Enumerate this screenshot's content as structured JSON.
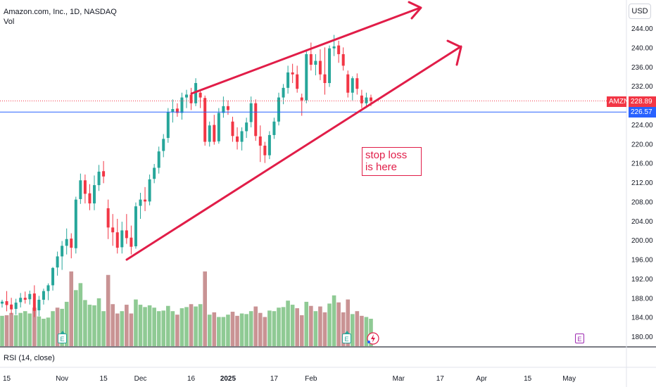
{
  "header": {
    "symbol_line": "Amazon.com, Inc., 1D, NASDAQ",
    "volume_label": "Vol"
  },
  "currency": "USD",
  "rsi_label": "RSI (14, close)",
  "annotation_note": [
    "stop loss",
    "is here"
  ],
  "price_tags": {
    "symbol": "AMZN",
    "last_price": "228.89",
    "line_price": "226.57"
  },
  "colors": {
    "up": "#26a69a",
    "down": "#f23645",
    "volume_up": "#8fca94",
    "volume_down": "#c99394",
    "annotation": "#e11d48",
    "hline": "#2962ff"
  },
  "icons": {
    "earnings_past": "E",
    "earnings_future": "E",
    "flash": "lightning-icon"
  },
  "chart_data": {
    "type": "candlestick",
    "title": "Amazon.com, Inc., 1D, NASDAQ",
    "ylim": [
      178,
      246
    ],
    "y_ticks": [
      180,
      184,
      188,
      192,
      196,
      200,
      204,
      208,
      212,
      216,
      220,
      224,
      228,
      232,
      236,
      240,
      244
    ],
    "y_tick_labels": [
      "180.00",
      "184.00",
      "188.00",
      "192.00",
      "196.00",
      "200.00",
      "204.00",
      "208.00",
      "212.00",
      "216.00",
      "220.00",
      "224.00",
      "228.00",
      "232.00",
      "236.00",
      "240.00",
      "244.00"
    ],
    "x_axis_ticks": [
      "15",
      "Nov",
      "15",
      "Dec",
      "16",
      "2025",
      "17",
      "Feb",
      "Mar",
      "17",
      "Apr",
      "15",
      "May"
    ],
    "x_axis_tick_bar_index": [
      1,
      13,
      22,
      30,
      41,
      49,
      59,
      67,
      86,
      95,
      104,
      114,
      123
    ],
    "last_price": 228.89,
    "horizontal_line": 226.57,
    "grid": false,
    "candles": [
      [
        186.8,
        187.6,
        186.0,
        187.2
      ],
      [
        187.3,
        189.4,
        185.2,
        186.5
      ],
      [
        186.6,
        188.0,
        184.6,
        185.6
      ],
      [
        185.7,
        187.8,
        184.5,
        187.0
      ],
      [
        187.1,
        189.0,
        186.0,
        188.0
      ],
      [
        188.0,
        189.3,
        186.8,
        187.6
      ],
      [
        187.7,
        189.5,
        186.6,
        188.8
      ],
      [
        188.9,
        190.6,
        184.0,
        185.3
      ],
      [
        185.4,
        188.4,
        184.2,
        187.6
      ],
      [
        187.6,
        189.9,
        186.6,
        189.4
      ],
      [
        189.4,
        191.0,
        187.5,
        190.6
      ],
      [
        190.6,
        194.4,
        189.5,
        194.2
      ],
      [
        194.3,
        197.6,
        192.6,
        196.6
      ],
      [
        196.6,
        199.8,
        193.8,
        198.8
      ],
      [
        198.8,
        202.4,
        197.0,
        200.2
      ],
      [
        200.3,
        201.4,
        196.2,
        198.4
      ],
      [
        198.3,
        209.0,
        197.2,
        208.4
      ],
      [
        208.5,
        213.8,
        207.5,
        212.4
      ],
      [
        212.4,
        213.6,
        207.6,
        209.6
      ],
      [
        209.7,
        211.6,
        206.2,
        207.6
      ],
      [
        207.6,
        213.4,
        206.2,
        211.4
      ],
      [
        211.4,
        215.6,
        210.2,
        214.2
      ],
      [
        214.3,
        216.4,
        211.8,
        213.2
      ],
      [
        206.6,
        208.4,
        200.2,
        202.6
      ],
      [
        202.6,
        205.4,
        198.8,
        201.6
      ],
      [
        201.6,
        204.4,
        197.2,
        198.4
      ],
      [
        198.5,
        203.8,
        197.2,
        202.0
      ],
      [
        202.0,
        205.4,
        199.2,
        200.4
      ],
      [
        200.5,
        203.0,
        197.0,
        198.6
      ],
      [
        198.7,
        207.8,
        198.2,
        207.0
      ],
      [
        207.1,
        209.8,
        204.4,
        208.4
      ],
      [
        208.4,
        211.0,
        206.0,
        208.0
      ],
      [
        208.0,
        213.6,
        207.2,
        212.6
      ],
      [
        212.7,
        215.8,
        211.8,
        215.0
      ],
      [
        215.0,
        219.4,
        213.8,
        218.4
      ],
      [
        218.5,
        222.0,
        217.2,
        221.0
      ],
      [
        221.2,
        227.4,
        220.2,
        226.6
      ],
      [
        226.6,
        229.2,
        224.4,
        227.2
      ],
      [
        227.3,
        228.4,
        225.6,
        226.4
      ],
      [
        226.4,
        230.6,
        225.0,
        229.6
      ],
      [
        229.6,
        231.2,
        227.4,
        230.2
      ],
      [
        230.2,
        231.6,
        227.0,
        228.4
      ],
      [
        228.4,
        233.6,
        227.8,
        232.6
      ],
      [
        230.6,
        231.0,
        227.4,
        229.6
      ],
      [
        229.5,
        230.0,
        219.6,
        220.4
      ],
      [
        220.4,
        224.6,
        219.4,
        223.8
      ],
      [
        223.9,
        226.0,
        219.8,
        220.4
      ],
      [
        220.5,
        227.4,
        220.0,
        226.4
      ],
      [
        226.4,
        229.8,
        225.4,
        227.8
      ],
      [
        227.8,
        229.0,
        226.0,
        227.0
      ],
      [
        224.6,
        225.6,
        220.4,
        221.6
      ],
      [
        221.5,
        223.4,
        218.8,
        220.4
      ],
      [
        220.4,
        223.4,
        218.6,
        222.6
      ],
      [
        222.6,
        225.4,
        221.2,
        224.4
      ],
      [
        224.5,
        229.8,
        223.4,
        228.4
      ],
      [
        228.4,
        229.2,
        220.6,
        221.6
      ],
      [
        221.5,
        223.8,
        216.2,
        219.6
      ],
      [
        219.6,
        220.4,
        216.0,
        217.6
      ],
      [
        217.6,
        222.6,
        216.8,
        221.8
      ],
      [
        221.8,
        225.4,
        221.0,
        224.6
      ],
      [
        224.6,
        230.6,
        223.8,
        229.6
      ],
      [
        229.6,
        232.4,
        228.2,
        231.6
      ],
      [
        231.6,
        236.2,
        230.4,
        234.8
      ],
      [
        234.8,
        236.6,
        232.6,
        234.4
      ],
      [
        234.4,
        236.2,
        230.6,
        231.4
      ],
      [
        229.6,
        230.4,
        225.8,
        229.0
      ],
      [
        229.0,
        239.6,
        228.4,
        238.6
      ],
      [
        238.6,
        241.0,
        235.2,
        236.4
      ],
      [
        236.4,
        238.6,
        234.2,
        237.2
      ],
      [
        237.2,
        239.6,
        233.2,
        234.4
      ],
      [
        234.4,
        240.0,
        230.2,
        232.6
      ],
      [
        232.6,
        240.4,
        231.8,
        239.8
      ],
      [
        239.8,
        242.6,
        238.2,
        240.2
      ],
      [
        240.4,
        241.4,
        236.8,
        238.6
      ],
      [
        238.6,
        240.0,
        235.2,
        236.2
      ],
      [
        234.4,
        235.2,
        229.6,
        230.6
      ],
      [
        230.6,
        234.0,
        229.0,
        233.6
      ],
      [
        233.6,
        234.6,
        230.2,
        231.4
      ],
      [
        230.0,
        231.2,
        227.4,
        228.4
      ],
      [
        228.4,
        230.6,
        227.4,
        229.6
      ],
      [
        229.6,
        230.2,
        227.8,
        228.9
      ]
    ],
    "volumes": [
      [
        0.52,
        1
      ],
      [
        0.53,
        0
      ],
      [
        0.57,
        0
      ],
      [
        0.53,
        1
      ],
      [
        0.57,
        1
      ],
      [
        0.6,
        1
      ],
      [
        0.56,
        1
      ],
      [
        0.66,
        0
      ],
      [
        0.51,
        1
      ],
      [
        0.47,
        1
      ],
      [
        0.49,
        1
      ],
      [
        0.6,
        1
      ],
      [
        0.66,
        0
      ],
      [
        0.64,
        1
      ],
      [
        0.76,
        1
      ],
      [
        1.28,
        0
      ],
      [
        0.96,
        1
      ],
      [
        1.08,
        1
      ],
      [
        0.79,
        1
      ],
      [
        0.71,
        1
      ],
      [
        0.7,
        1
      ],
      [
        0.82,
        1
      ],
      [
        0.6,
        1
      ],
      [
        1.22,
        0
      ],
      [
        0.72,
        0
      ],
      [
        0.56,
        0
      ],
      [
        0.6,
        1
      ],
      [
        0.71,
        0
      ],
      [
        0.56,
        0
      ],
      [
        0.8,
        1
      ],
      [
        0.71,
        1
      ],
      [
        0.67,
        1
      ],
      [
        0.7,
        1
      ],
      [
        0.66,
        1
      ],
      [
        0.6,
        1
      ],
      [
        0.61,
        1
      ],
      [
        0.69,
        1
      ],
      [
        0.6,
        1
      ],
      [
        0.54,
        0
      ],
      [
        0.65,
        1
      ],
      [
        0.67,
        1
      ],
      [
        0.72,
        0
      ],
      [
        0.68,
        1
      ],
      [
        0.72,
        1
      ],
      [
        1.28,
        0
      ],
      [
        0.54,
        1
      ],
      [
        0.58,
        0
      ],
      [
        0.5,
        1
      ],
      [
        0.5,
        1
      ],
      [
        0.54,
        1
      ],
      [
        0.59,
        0
      ],
      [
        0.52,
        0
      ],
      [
        0.56,
        1
      ],
      [
        0.55,
        1
      ],
      [
        0.6,
        1
      ],
      [
        0.68,
        0
      ],
      [
        0.57,
        0
      ],
      [
        0.5,
        0
      ],
      [
        0.61,
        1
      ],
      [
        0.6,
        1
      ],
      [
        0.66,
        1
      ],
      [
        0.67,
        1
      ],
      [
        0.78,
        1
      ],
      [
        0.71,
        1
      ],
      [
        0.65,
        0
      ],
      [
        0.53,
        0
      ],
      [
        0.76,
        1
      ],
      [
        0.69,
        0
      ],
      [
        0.6,
        1
      ],
      [
        0.68,
        0
      ],
      [
        0.58,
        0
      ],
      [
        0.73,
        1
      ],
      [
        0.87,
        1
      ],
      [
        0.75,
        0
      ],
      [
        0.58,
        0
      ],
      [
        0.8,
        0
      ],
      [
        0.55,
        1
      ],
      [
        0.6,
        0
      ],
      [
        0.52,
        0
      ],
      [
        0.5,
        1
      ],
      [
        0.47,
        1
      ]
    ]
  }
}
